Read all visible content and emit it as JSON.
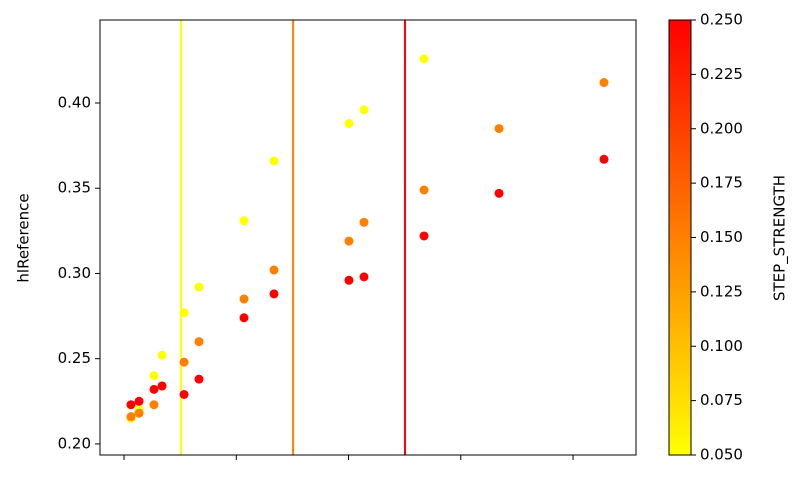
{
  "chart_data": {
    "type": "scatter",
    "ylabel": "hlReference",
    "colorbar_label": "STEP_STRENGTH",
    "colormap": [
      "#ffff00",
      "#ff0000"
    ],
    "clim": [
      0.05,
      0.25
    ],
    "cticks": [
      {
        "value": 0.05,
        "label": "0.050"
      },
      {
        "value": 0.075,
        "label": "0.075"
      },
      {
        "value": 0.1,
        "label": "0.100"
      },
      {
        "value": 0.125,
        "label": "0.125"
      },
      {
        "value": 0.15,
        "label": "0.150"
      },
      {
        "value": 0.175,
        "label": "0.175"
      },
      {
        "value": 0.2,
        "label": "0.200"
      },
      {
        "value": 0.225,
        "label": "0.225"
      },
      {
        "value": 0.25,
        "label": "0.250"
      }
    ],
    "xlim": [
      -0.214,
      4.561
    ],
    "xticks": [
      0,
      1,
      2,
      3,
      4
    ],
    "ylim": [
      0.1935,
      0.4487
    ],
    "yticks": [
      {
        "value": 0.2,
        "label": "0.20"
      },
      0.25,
      {
        "value": 0.3,
        "label": "0.30"
      },
      0.35,
      {
        "value": 0.4,
        "label": "0.40"
      }
    ],
    "vlines": [
      {
        "x": 0.508,
        "c": 0.05
      },
      {
        "x": 1.506,
        "c": 0.15
      },
      {
        "x": 2.503,
        "c": 0.25
      }
    ],
    "series": [
      {
        "c": 0.05,
        "x": [
          0.062,
          0.134,
          0.267,
          0.339,
          0.535,
          0.668,
          1.069,
          1.336,
          2.004,
          2.138,
          2.673
        ],
        "values": [
          0.215,
          0.22,
          0.24,
          0.252,
          0.277,
          0.292,
          0.331,
          0.366,
          0.388,
          0.396,
          0.426
        ]
      },
      {
        "c": 0.15,
        "x": [
          0.062,
          0.134,
          0.267,
          0.339,
          0.535,
          0.668,
          1.069,
          1.336,
          2.004,
          2.138,
          2.673,
          3.341,
          4.276
        ],
        "values": [
          0.216,
          0.218,
          0.223,
          0.234,
          0.248,
          0.26,
          0.285,
          0.302,
          0.319,
          0.33,
          0.349,
          0.385,
          0.412
        ]
      },
      {
        "c": 0.25,
        "x": [
          0.062,
          0.134,
          0.267,
          0.339,
          0.535,
          0.668,
          1.069,
          1.336,
          2.004,
          2.138,
          2.673,
          3.341,
          4.276
        ],
        "values": [
          0.223,
          0.225,
          0.232,
          0.234,
          0.229,
          0.238,
          0.274,
          0.288,
          0.296,
          0.298,
          0.322,
          0.347,
          0.367
        ]
      }
    ]
  }
}
